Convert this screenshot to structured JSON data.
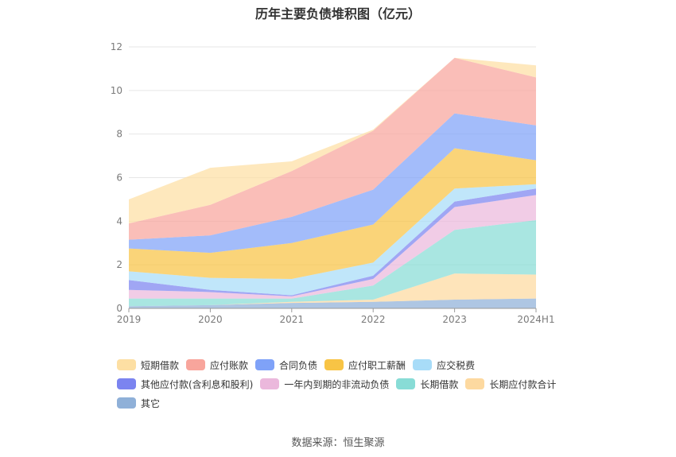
{
  "chart_data": {
    "type": "area",
    "stacked": true,
    "title": "历年主要负债堆积图（亿元）",
    "x": [
      "2019",
      "2020",
      "2021",
      "2022",
      "2023",
      "2024H1"
    ],
    "ylim": [
      0,
      12
    ],
    "yticks": [
      0,
      2,
      4,
      6,
      8,
      10,
      12
    ],
    "grid": true,
    "legend_position": "bottom",
    "series": [
      {
        "name": "其它",
        "color": "#8fb0d8",
        "values": [
          0.1,
          0.15,
          0.25,
          0.3,
          0.4,
          0.45
        ]
      },
      {
        "name": "长期应付款合计",
        "color": "#fdd9a0",
        "values": [
          0.0,
          0.0,
          0.05,
          0.1,
          1.2,
          1.1
        ]
      },
      {
        "name": "长期借款",
        "color": "#88dcd6",
        "values": [
          0.35,
          0.3,
          0.15,
          0.65,
          2.0,
          2.5
        ]
      },
      {
        "name": "一年内到期的非流动负债",
        "color": "#ebb8dc",
        "values": [
          0.4,
          0.3,
          0.1,
          0.3,
          1.05,
          1.15
        ]
      },
      {
        "name": "其他应付款(含利息和股利)",
        "color": "#7b84f0",
        "values": [
          0.45,
          0.1,
          0.05,
          0.15,
          0.25,
          0.3
        ]
      },
      {
        "name": "应交税费",
        "color": "#a8dcf8",
        "values": [
          0.4,
          0.55,
          0.75,
          0.6,
          0.6,
          0.2
        ]
      },
      {
        "name": "应付职工薪酬",
        "color": "#f8c445",
        "values": [
          1.05,
          1.15,
          1.65,
          1.75,
          1.85,
          1.1
        ]
      },
      {
        "name": "合同负债",
        "color": "#7fa2f8",
        "values": [
          0.4,
          0.8,
          1.2,
          1.6,
          1.6,
          1.6
        ]
      },
      {
        "name": "应付账款",
        "color": "#f8a59c",
        "values": [
          0.75,
          1.4,
          2.1,
          2.7,
          2.55,
          2.2
        ]
      },
      {
        "name": "短期借款",
        "color": "#fddfa3",
        "values": [
          1.1,
          1.7,
          0.45,
          0.05,
          0.0,
          0.55
        ]
      }
    ],
    "legend_order": [
      "短期借款",
      "应付账款",
      "合同负债",
      "应付职工薪酬",
      "应交税费",
      "其他应付款(含利息和股利)",
      "一年内到期的非流动负债",
      "长期借款",
      "长期应付款合计",
      "其它"
    ]
  },
  "source_text": "数据来源：恒生聚源"
}
